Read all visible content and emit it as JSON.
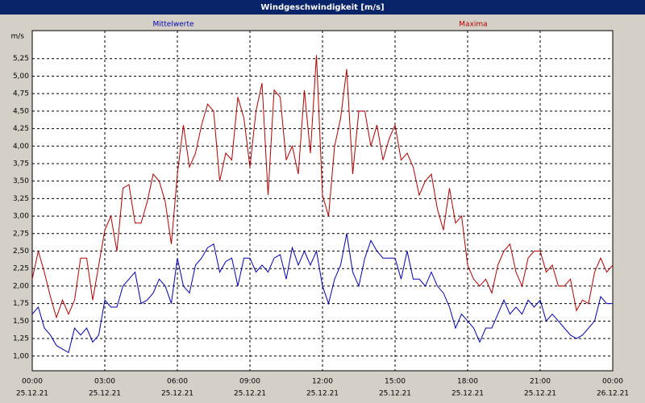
{
  "window_title": "Windgeschwindigkeit [m/s]",
  "chart_data": {
    "type": "line",
    "y_label": "m/s",
    "x": [
      0,
      0.25,
      0.5,
      0.75,
      1,
      1.25,
      1.5,
      1.75,
      2,
      2.25,
      2.5,
      2.75,
      3,
      3.25,
      3.5,
      3.75,
      4,
      4.25,
      4.5,
      4.75,
      5,
      5.25,
      5.5,
      5.75,
      6,
      6.25,
      6.5,
      6.75,
      7,
      7.25,
      7.5,
      7.75,
      8,
      8.25,
      8.5,
      8.75,
      9,
      9.25,
      9.5,
      9.75,
      10,
      10.25,
      10.5,
      10.75,
      11,
      11.25,
      11.5,
      11.75,
      12,
      12.25,
      12.5,
      12.75,
      13,
      13.25,
      13.5,
      13.75,
      14,
      14.25,
      14.5,
      14.75,
      15,
      15.25,
      15.5,
      15.75,
      16,
      16.25,
      16.5,
      16.75,
      17,
      17.25,
      17.5,
      17.75,
      18,
      18.25,
      18.5,
      18.75,
      19,
      19.25,
      19.5,
      19.75,
      20,
      20.25,
      20.5,
      20.75,
      21,
      21.25,
      21.5,
      21.75,
      22,
      22.25,
      22.5,
      22.75,
      23,
      23.25,
      23.5,
      23.75,
      24
    ],
    "series": [
      {
        "name": "Mittelwerte",
        "color": "#0000b0",
        "values": [
          1.6,
          1.7,
          1.4,
          1.3,
          1.15,
          1.1,
          1.05,
          1.4,
          1.3,
          1.4,
          1.2,
          1.3,
          1.8,
          1.7,
          1.7,
          2.0,
          2.1,
          2.2,
          1.75,
          1.8,
          1.9,
          2.1,
          2.0,
          1.75,
          2.4,
          2.0,
          1.9,
          2.3,
          2.4,
          2.55,
          2.6,
          2.2,
          2.35,
          2.4,
          2.0,
          2.4,
          2.4,
          2.2,
          2.3,
          2.2,
          2.4,
          2.45,
          2.1,
          2.55,
          2.3,
          2.5,
          2.3,
          2.5,
          2.0,
          1.75,
          2.1,
          2.3,
          2.75,
          2.2,
          2.0,
          2.4,
          2.65,
          2.5,
          2.4,
          2.4,
          2.4,
          2.1,
          2.5,
          2.1,
          2.1,
          2.0,
          2.2,
          2.0,
          1.9,
          1.7,
          1.4,
          1.6,
          1.5,
          1.4,
          1.2,
          1.4,
          1.4,
          1.6,
          1.8,
          1.6,
          1.7,
          1.6,
          1.8,
          1.7,
          1.8,
          1.5,
          1.6,
          1.5,
          1.4,
          1.3,
          1.25,
          1.3,
          1.4,
          1.5,
          1.85,
          1.75,
          1.75
        ]
      },
      {
        "name": "Maxima",
        "color": "#b00000",
        "values": [
          2.1,
          2.5,
          2.2,
          1.85,
          1.55,
          1.8,
          1.6,
          1.8,
          2.4,
          2.4,
          1.8,
          2.3,
          2.8,
          3.0,
          2.5,
          3.4,
          3.45,
          2.9,
          2.9,
          3.2,
          3.6,
          3.5,
          3.2,
          2.6,
          3.6,
          4.3,
          3.7,
          3.9,
          4.3,
          4.6,
          4.5,
          3.5,
          3.9,
          3.8,
          4.7,
          4.4,
          3.7,
          4.5,
          4.9,
          3.3,
          4.8,
          4.7,
          3.8,
          4.0,
          3.6,
          4.8,
          3.9,
          5.3,
          3.3,
          3.0,
          4.0,
          4.4,
          5.1,
          3.6,
          4.5,
          4.5,
          4.0,
          4.3,
          3.8,
          4.1,
          4.3,
          3.8,
          3.9,
          3.7,
          3.3,
          3.5,
          3.6,
          3.1,
          2.8,
          3.4,
          2.9,
          3.0,
          2.3,
          2.1,
          2.0,
          2.1,
          1.9,
          2.3,
          2.5,
          2.6,
          2.2,
          2.0,
          2.4,
          2.5,
          2.5,
          2.2,
          2.3,
          2.0,
          2.0,
          2.1,
          1.65,
          1.8,
          1.75,
          2.2,
          2.4,
          2.2,
          2.3
        ]
      }
    ],
    "xlim": [
      0,
      24
    ],
    "xticks": [
      {
        "value": 0,
        "label": "00:00"
      },
      {
        "value": 3,
        "label": "03:00"
      },
      {
        "value": 6,
        "label": "06:00"
      },
      {
        "value": 9,
        "label": "09:00"
      },
      {
        "value": 12,
        "label": "12:00"
      },
      {
        "value": 15,
        "label": "15:00"
      },
      {
        "value": 18,
        "label": "18:00"
      },
      {
        "value": 21,
        "label": "21:00"
      },
      {
        "value": 24,
        "label": "00:00"
      }
    ],
    "xtick_dates": [
      "25.12.21",
      "25.12.21",
      "25.12.21",
      "25.12.21",
      "25.12.21",
      "25.12.21",
      "25.12.21",
      "25.12.21",
      "26.12.21"
    ],
    "ylim": [
      0.79,
      5.65
    ],
    "yticks": [
      {
        "value": 1,
        "label": "1,00"
      },
      {
        "value": 1.25,
        "label": "1,25"
      },
      {
        "value": 1.5,
        "label": "1,50"
      },
      {
        "value": 1.75,
        "label": "1,75"
      },
      {
        "value": 2,
        "label": "2,00"
      },
      {
        "value": 2.25,
        "label": "2,25"
      },
      {
        "value": 2.5,
        "label": "2,50"
      },
      {
        "value": 2.75,
        "label": "2,75"
      },
      {
        "value": 3,
        "label": "3,00"
      },
      {
        "value": 3.25,
        "label": "3,25"
      },
      {
        "value": 3.5,
        "label": "3,50"
      },
      {
        "value": 3.75,
        "label": "3,75"
      },
      {
        "value": 4,
        "label": "4,00"
      },
      {
        "value": 4.25,
        "label": "4,25"
      },
      {
        "value": 4.5,
        "label": "4,50"
      },
      {
        "value": 4.75,
        "label": "4,75"
      },
      {
        "value": 5,
        "label": "5,00"
      },
      {
        "value": 5.25,
        "label": "5,25"
      }
    ],
    "grid": true
  }
}
